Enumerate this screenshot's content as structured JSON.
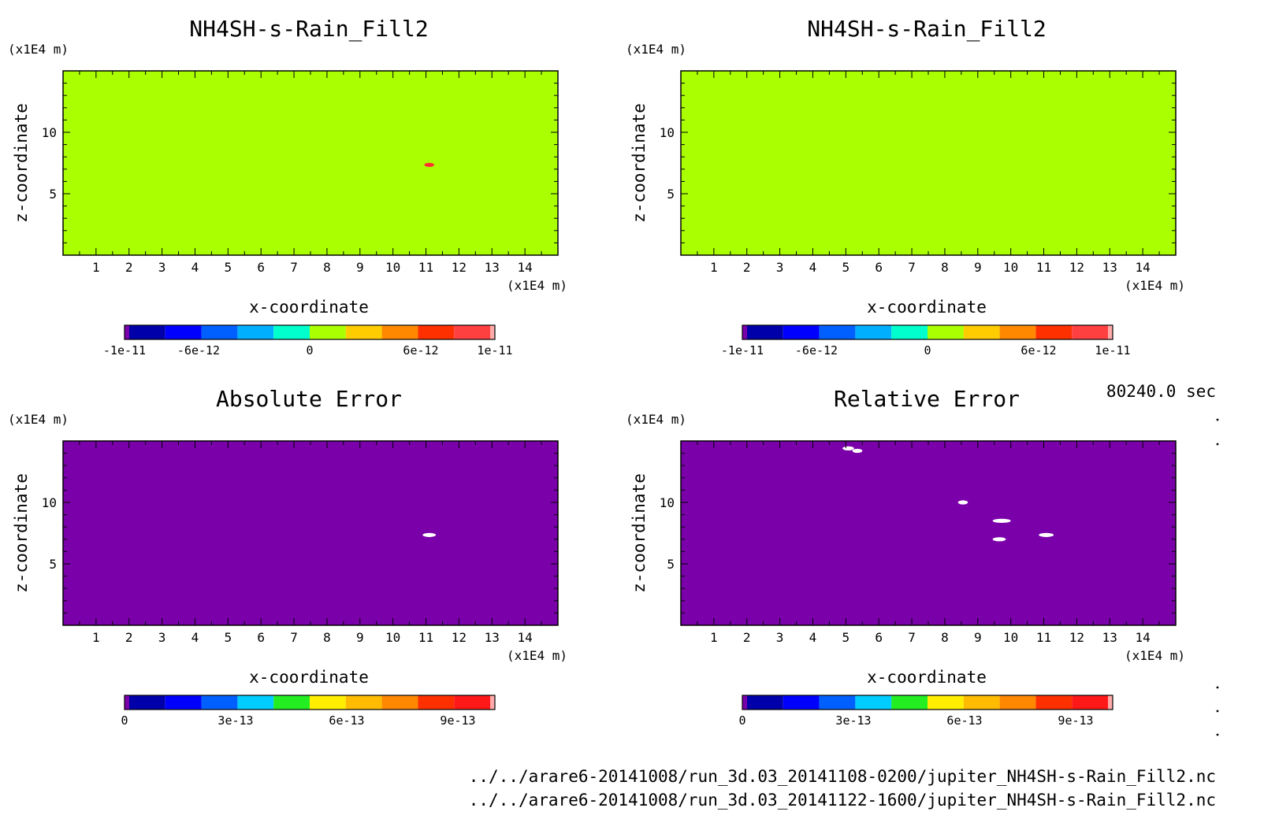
{
  "time_label": "80240.0 sec",
  "file_paths": [
    "../../arare6-20141008/run_3d.03_20141108-0200/jupiter_NH4SH-s-Rain_Fill2.nc",
    "../../arare6-20141008/run_3d.03_20141122-1600/jupiter_NH4SH-s-Rain_Fill2.nc"
  ],
  "chart_data": [
    {
      "type": "heatmap",
      "title": "NH4SH-s-Rain_Fill2",
      "xlabel": "x-coordinate",
      "ylabel": "z-coordinate",
      "x_unit": "(x1E4 m)",
      "y_unit": "(x1E4 m)",
      "xlim": [
        0,
        15
      ],
      "ylim": [
        0,
        15
      ],
      "x_ticks": [
        1,
        2,
        3,
        4,
        5,
        6,
        7,
        8,
        9,
        10,
        11,
        12,
        13,
        14
      ],
      "y_ticks": [
        5,
        10
      ],
      "background_color": "#aaff00",
      "features": [
        {
          "x": [
            10.95,
            11.25
          ],
          "z": 7.35,
          "color": "#ff3030"
        }
      ],
      "colorbar": {
        "ticks": [
          "-1e-11",
          "-6e-12",
          "0",
          "6e-12",
          "1e-11"
        ],
        "tick_values": [
          -1e-11,
          -6e-12,
          0,
          6e-12,
          1e-11
        ],
        "range": [
          -1e-11,
          1e-11
        ],
        "colors": [
          "#7a00aa",
          "#0000aa",
          "#0000ff",
          "#0060ff",
          "#00b0ff",
          "#00ffcc",
          "#aaff00",
          "#ffcc00",
          "#ff8800",
          "#ff3000",
          "#ff4040",
          "#ffaaaa"
        ]
      }
    },
    {
      "type": "heatmap",
      "title": "NH4SH-s-Rain_Fill2",
      "xlabel": "x-coordinate",
      "ylabel": "z-coordinate",
      "x_unit": "(x1E4 m)",
      "y_unit": "(x1E4 m)",
      "xlim": [
        0,
        15
      ],
      "ylim": [
        0,
        15
      ],
      "x_ticks": [
        1,
        2,
        3,
        4,
        5,
        6,
        7,
        8,
        9,
        10,
        11,
        12,
        13,
        14
      ],
      "y_ticks": [
        5,
        10
      ],
      "background_color": "#aaff00",
      "features": [],
      "colorbar": {
        "ticks": [
          "-1e-11",
          "-6e-12",
          "0",
          "6e-12",
          "1e-11"
        ],
        "tick_values": [
          -1e-11,
          -6e-12,
          0,
          6e-12,
          1e-11
        ],
        "range": [
          -1e-11,
          1e-11
        ],
        "colors": [
          "#7a00aa",
          "#0000aa",
          "#0000ff",
          "#0060ff",
          "#00b0ff",
          "#00ffcc",
          "#aaff00",
          "#ffcc00",
          "#ff8800",
          "#ff3000",
          "#ff4040",
          "#ffaaaa"
        ]
      }
    },
    {
      "type": "heatmap",
      "title": "Absolute Error",
      "xlabel": "x-coordinate",
      "ylabel": "z-coordinate",
      "x_unit": "(x1E4 m)",
      "y_unit": "(x1E4 m)",
      "xlim": [
        0,
        15
      ],
      "ylim": [
        0,
        15
      ],
      "x_ticks": [
        1,
        2,
        3,
        4,
        5,
        6,
        7,
        8,
        9,
        10,
        11,
        12,
        13,
        14
      ],
      "y_ticks": [
        5,
        10
      ],
      "background_color": "#7a00aa",
      "features": [
        {
          "x": [
            10.9,
            11.3
          ],
          "z": 7.35,
          "color": "#ffffff"
        }
      ],
      "colorbar": {
        "ticks": [
          "0",
          "3e-13",
          "6e-13",
          "9e-13"
        ],
        "tick_values": [
          0,
          3e-13,
          6e-13,
          9e-13
        ],
        "range": [
          0,
          1e-12
        ],
        "colors": [
          "#7a00aa",
          "#0000aa",
          "#0000ff",
          "#0060ff",
          "#00ccff",
          "#22ee22",
          "#ffee00",
          "#ffbb00",
          "#ff8800",
          "#ff3000",
          "#ff1818",
          "#ffaaaa"
        ]
      }
    },
    {
      "type": "heatmap",
      "title": "Relative Error",
      "xlabel": "x-coordinate",
      "ylabel": "z-coordinate",
      "x_unit": "(x1E4 m)",
      "y_unit": "(x1E4 m)",
      "xlim": [
        0,
        15
      ],
      "ylim": [
        0,
        15
      ],
      "x_ticks": [
        1,
        2,
        3,
        4,
        5,
        6,
        7,
        8,
        9,
        10,
        11,
        12,
        13,
        14
      ],
      "y_ticks": [
        5,
        10
      ],
      "background_color": "#7a00aa",
      "features": [
        {
          "x": [
            4.9,
            5.25
          ],
          "z": 14.4,
          "color": "#ffffff"
        },
        {
          "x": [
            5.2,
            5.5
          ],
          "z": 14.2,
          "color": "#ffffff"
        },
        {
          "x": [
            8.4,
            8.7
          ],
          "z": 10.0,
          "color": "#ffffff"
        },
        {
          "x": [
            9.45,
            10.0
          ],
          "z": 8.5,
          "color": "#ffffff"
        },
        {
          "x": [
            9.45,
            9.85
          ],
          "z": 7.0,
          "color": "#ffffff"
        },
        {
          "x": [
            10.85,
            11.3
          ],
          "z": 7.35,
          "color": "#ffffff"
        }
      ],
      "colorbar": {
        "ticks": [
          "0",
          "3e-13",
          "6e-13",
          "9e-13"
        ],
        "tick_values": [
          0,
          3e-13,
          6e-13,
          9e-13
        ],
        "range": [
          0,
          1e-12
        ],
        "colors": [
          "#7a00aa",
          "#0000aa",
          "#0000ff",
          "#0060ff",
          "#00ccff",
          "#22ee22",
          "#ffee00",
          "#ffbb00",
          "#ff8800",
          "#ff3000",
          "#ff1818",
          "#ffaaaa"
        ]
      }
    }
  ]
}
